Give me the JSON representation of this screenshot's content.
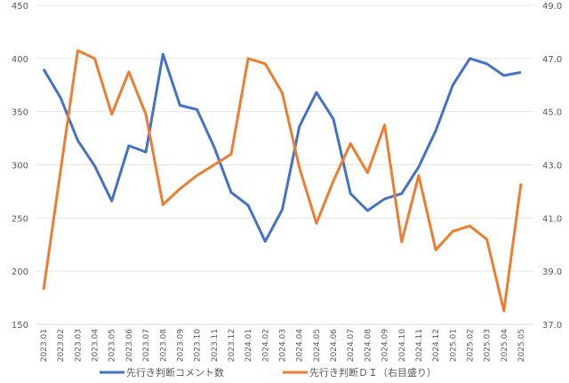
{
  "chart_data": {
    "type": "line",
    "title": "",
    "categories": [
      "2023.01",
      "2023.02",
      "2023.03",
      "2023.04",
      "2023.05",
      "2023.06",
      "2023.07",
      "2023.08",
      "2023.09",
      "2023.10",
      "2023.11",
      "2023.12",
      "2024.01",
      "2024.02",
      "2024.03",
      "2024.04",
      "2024.05",
      "2024.06",
      "2024.07",
      "2024.08",
      "2024.09",
      "2024.10",
      "2024.11",
      "2024.12",
      "2025.01",
      "2025.02",
      "2025.03",
      "2025.04",
      "2025.05"
    ],
    "y_left": {
      "range": [
        150,
        450
      ],
      "ticks": [
        "150",
        "200",
        "250",
        "300",
        "350",
        "400",
        "450"
      ]
    },
    "y_right": {
      "range": [
        37.0,
        49.0
      ],
      "ticks": [
        "37.0",
        "39.0",
        "41.0",
        "43.0",
        "45.0",
        "47.0",
        "49.0"
      ]
    },
    "grid": true,
    "legend_position": "bottom",
    "series": [
      {
        "name": "先行き判断コメント数",
        "axis": "left",
        "color": "#4472C4",
        "values": [
          390,
          363,
          323,
          299,
          266,
          318,
          312,
          404,
          356,
          352,
          317,
          274,
          262,
          228,
          258,
          336,
          368,
          343,
          273,
          257,
          268,
          273,
          298,
          332,
          375,
          400,
          395,
          384,
          387
        ]
      },
      {
        "name": "先行き判断ＤＩ（右目盛り）",
        "axis": "right",
        "color": "#ED7D31",
        "values": [
          38.3,
          42.8,
          47.3,
          47.0,
          44.9,
          46.5,
          44.9,
          41.5,
          42.1,
          42.6,
          43.0,
          43.4,
          47.0,
          46.8,
          45.7,
          42.9,
          40.8,
          42.4,
          43.8,
          42.7,
          44.5,
          40.1,
          42.6,
          39.8,
          40.5,
          40.7,
          40.2,
          37.5,
          42.3
        ]
      }
    ]
  }
}
